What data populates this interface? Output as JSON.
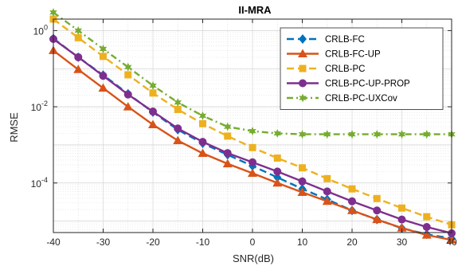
{
  "chart_data": {
    "type": "line",
    "title": "II-MRA",
    "xlabel": "SNR(dB)",
    "ylabel": "RMSE",
    "yscale": "log",
    "xlim": [
      -40,
      40
    ],
    "ylim": [
      5e-06,
      2
    ],
    "xticks": [
      -40,
      -30,
      -20,
      -10,
      0,
      10,
      20,
      30,
      40
    ],
    "yticks": [
      {
        "value": 0.0001,
        "base": "10",
        "exp": "-4"
      },
      {
        "value": 0.01,
        "base": "10",
        "exp": "-2"
      },
      {
        "value": 1,
        "base": "10",
        "exp": "0"
      }
    ],
    "grid": true,
    "legend_position": "top-right",
    "x": [
      -40,
      -35,
      -30,
      -25,
      -20,
      -15,
      -10,
      -5,
      0,
      5,
      10,
      15,
      20,
      25,
      30,
      35,
      40
    ],
    "series": [
      {
        "name": "CRLB-FC",
        "color": "#0072BD",
        "linestyle": "dashed",
        "marker": "diamond",
        "values": [
          0.62,
          0.2,
          0.068,
          0.022,
          0.0072,
          0.0025,
          0.0011,
          0.00055,
          0.00028,
          0.00014,
          7e-05,
          3.7e-05,
          1.9e-05,
          1.1e-05,
          6.5e-06,
          4.5e-06,
          3.5e-06
        ]
      },
      {
        "name": "CRLB-FC-UP",
        "color": "#D95319",
        "linestyle": "solid",
        "marker": "triangle",
        "values": [
          0.3,
          0.095,
          0.031,
          0.01,
          0.0034,
          0.0013,
          0.0006,
          0.00032,
          0.00018,
          0.0001,
          5.7e-05,
          3.3e-05,
          1.9e-05,
          1.1e-05,
          6.6e-06,
          4.3e-06,
          3.2e-06
        ]
      },
      {
        "name": "CRLB-PC",
        "color": "#EDB120",
        "linestyle": "dashed",
        "marker": "square",
        "values": [
          2.0,
          0.65,
          0.21,
          0.069,
          0.023,
          0.0085,
          0.0036,
          0.0017,
          0.00085,
          0.00045,
          0.00025,
          0.00013,
          7e-05,
          3.9e-05,
          2.2e-05,
          1.3e-05,
          8e-06
        ]
      },
      {
        "name": "CRLB-PC-UP-PROP",
        "color": "#7E2F8E",
        "linestyle": "solid",
        "marker": "circle",
        "values": [
          0.6,
          0.2,
          0.065,
          0.021,
          0.0075,
          0.0027,
          0.0012,
          0.00061,
          0.00035,
          0.0002,
          0.00011,
          6e-05,
          3.3e-05,
          1.9e-05,
          1.1e-05,
          7e-06,
          4.8e-06
        ]
      },
      {
        "name": "CRLB-PC-UXCov",
        "color": "#77AC30",
        "linestyle": "dashdot",
        "marker": "hexagram",
        "values": [
          3.0,
          1.0,
          0.33,
          0.11,
          0.036,
          0.013,
          0.0058,
          0.003,
          0.0023,
          0.002,
          0.0019,
          0.0019,
          0.0019,
          0.0019,
          0.0019,
          0.0019,
          0.0019
        ]
      }
    ]
  }
}
